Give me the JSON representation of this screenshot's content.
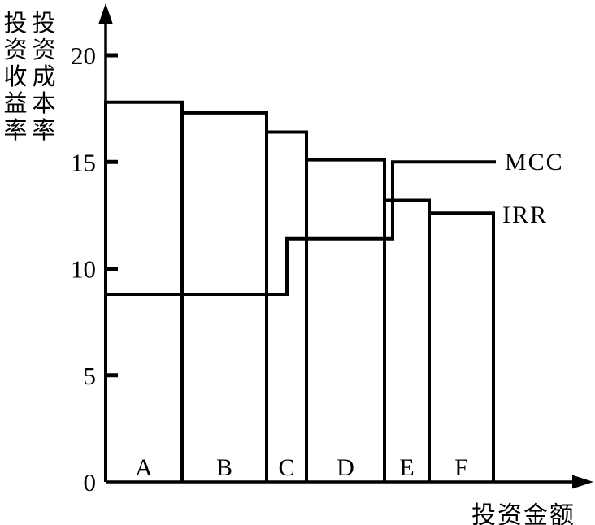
{
  "figure": {
    "background_color": "#ffffff",
    "ink_color": "#000000"
  },
  "chart_data": {
    "type": "bar",
    "subtype": "irr-mcc-step-chart",
    "title": "",
    "grid": false,
    "x_axis": {
      "label": "投资金额",
      "has_arrow": true,
      "numeric_ticks": []
    },
    "y_axis": {
      "label_columns": [
        "投资收益率",
        "投资成本率"
      ],
      "ticks": [
        0,
        5,
        10,
        15,
        20
      ],
      "range": [
        0,
        21.5
      ],
      "has_arrow": true
    },
    "categories": [
      "A",
      "B",
      "C",
      "D",
      "E",
      "F"
    ],
    "projects": [
      {
        "name": "A",
        "irr": 17.8,
        "amount": 94
      },
      {
        "name": "B",
        "irr": 17.3,
        "amount": 104
      },
      {
        "name": "C",
        "irr": 16.4,
        "amount": 49
      },
      {
        "name": "D",
        "irr": 15.1,
        "amount": 96
      },
      {
        "name": "E",
        "irr": 13.2,
        "amount": 55
      },
      {
        "name": "F",
        "irr": 12.6,
        "amount": 79
      }
    ],
    "mcc_segments": [
      {
        "value": 8.8,
        "from": 0,
        "to": 223
      },
      {
        "value": 11.4,
        "from": 223,
        "to": 353
      },
      {
        "value": 15.0,
        "from": 353,
        "to": 480
      }
    ],
    "curve_labels": {
      "mcc": "MCC",
      "irr": "IRR"
    },
    "legend_position": "right-of-curves"
  }
}
